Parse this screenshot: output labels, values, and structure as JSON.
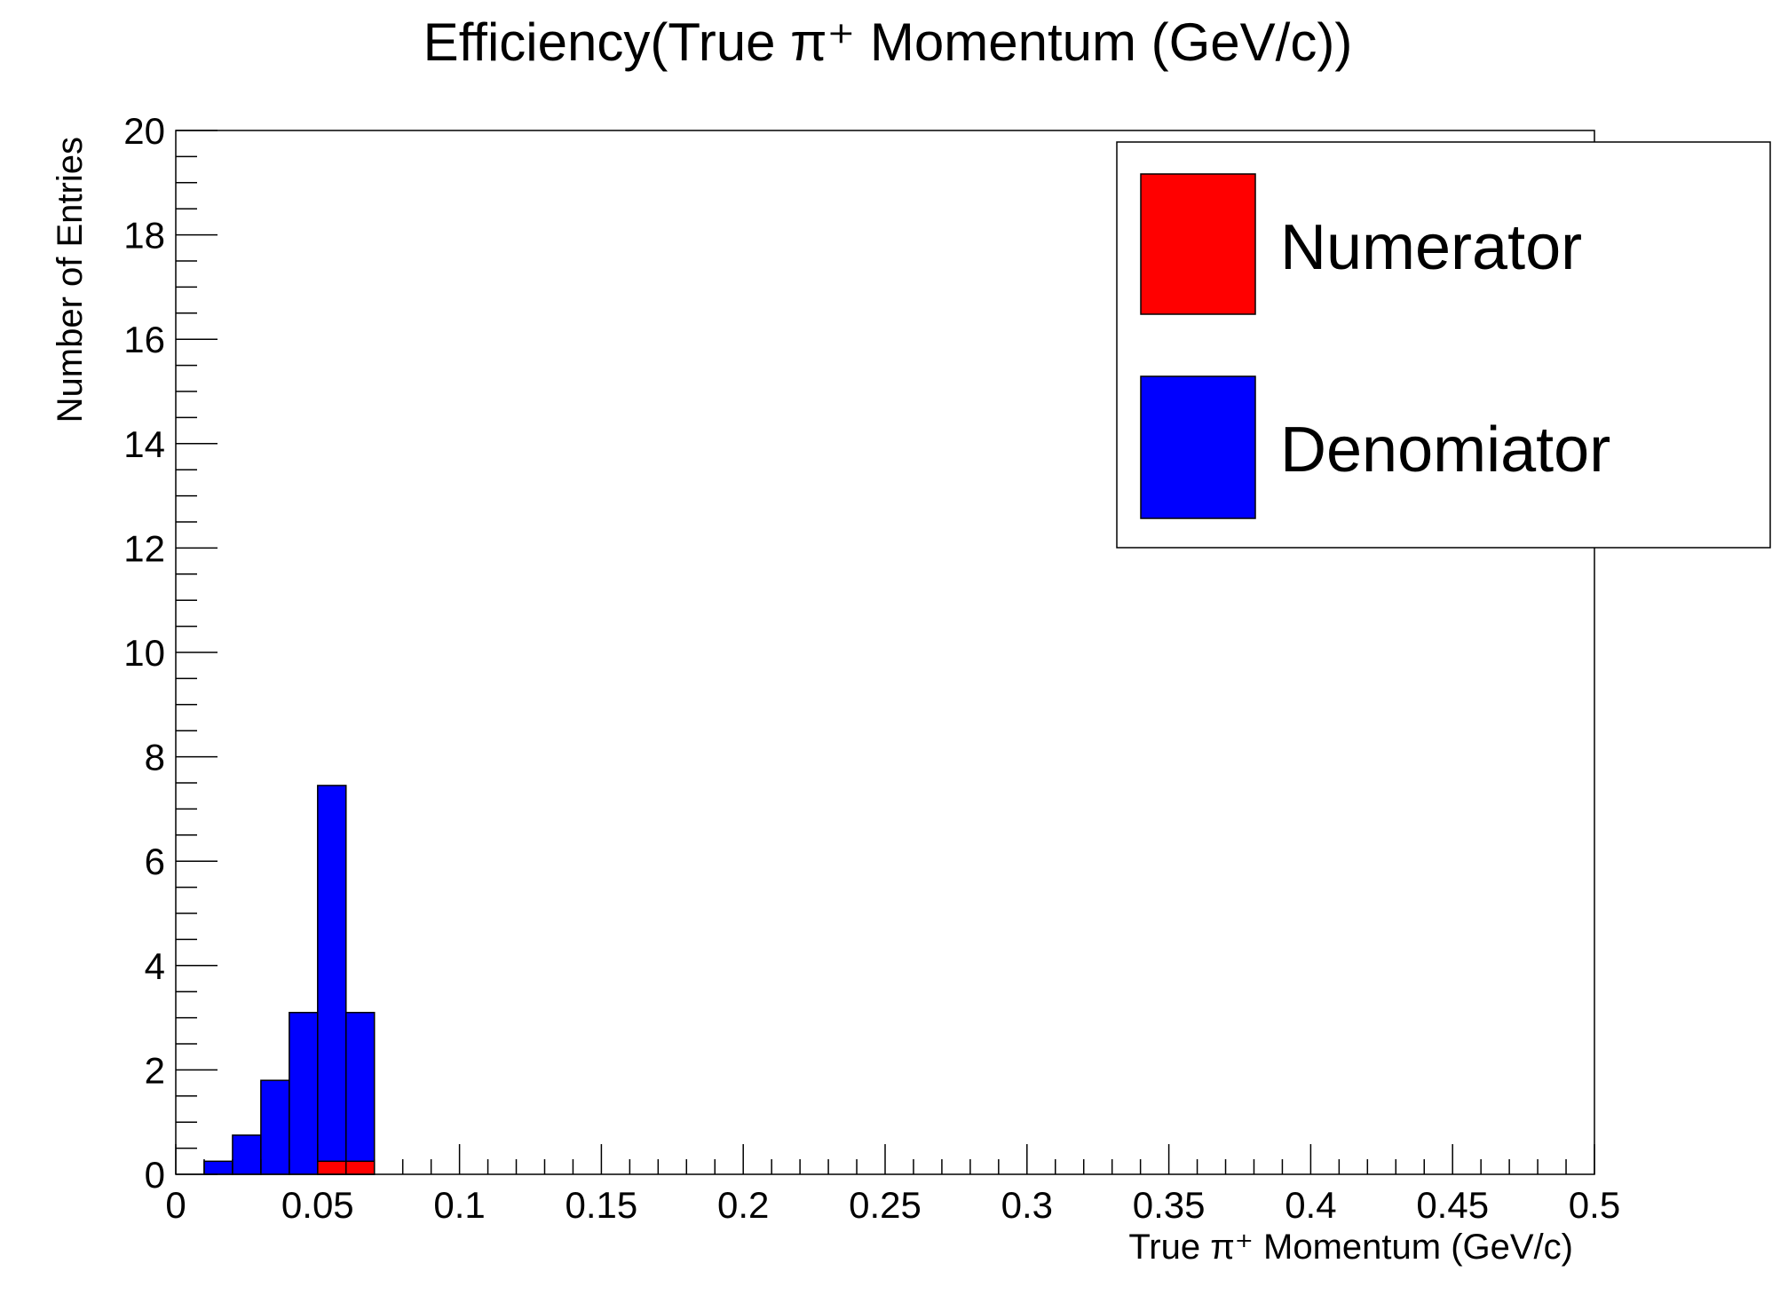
{
  "chart_data": {
    "type": "bar",
    "title": "Efficiency(True π⁺ Momentum (GeV/c))",
    "xlabel": "True π⁺ Momentum (GeV/c)",
    "ylabel": "Number of Entries",
    "xlim": [
      0,
      0.5
    ],
    "ylim": [
      0,
      20
    ],
    "x_ticks": [
      "0",
      "0.05",
      "0.1",
      "0.15",
      "0.2",
      "0.25",
      "0.3",
      "0.35",
      "0.4",
      "0.45",
      "0.5"
    ],
    "y_ticks": [
      "0",
      "2",
      "4",
      "6",
      "8",
      "10",
      "12",
      "14",
      "16",
      "18",
      "20"
    ],
    "grid": false,
    "legend_position": "top-right",
    "bin_width": 0.01,
    "series": [
      {
        "name": "Denomiator",
        "color": "#0000ff",
        "bins": [
          {
            "x0": 0.01,
            "x1": 0.02,
            "value": 0.25
          },
          {
            "x0": 0.02,
            "x1": 0.03,
            "value": 0.75
          },
          {
            "x0": 0.03,
            "x1": 0.04,
            "value": 1.8
          },
          {
            "x0": 0.04,
            "x1": 0.05,
            "value": 3.1
          },
          {
            "x0": 0.05,
            "x1": 0.06,
            "value": 7.45
          },
          {
            "x0": 0.06,
            "x1": 0.07,
            "value": 3.1
          }
        ]
      },
      {
        "name": "Numerator",
        "color": "#ff0000",
        "bins": [
          {
            "x0": 0.05,
            "x1": 0.06,
            "value": 0.25
          },
          {
            "x0": 0.06,
            "x1": 0.07,
            "value": 0.25
          }
        ]
      }
    ],
    "legend": [
      {
        "label": "Numerator",
        "color": "#ff0000"
      },
      {
        "label": "Denomiator",
        "color": "#0000ff"
      }
    ]
  }
}
